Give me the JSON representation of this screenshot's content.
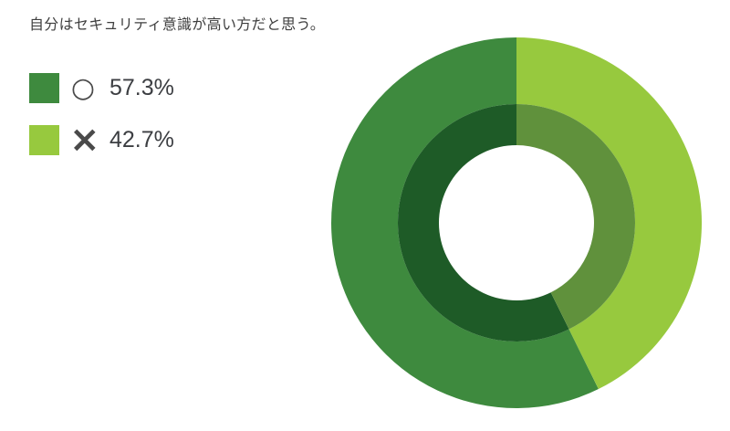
{
  "title": {
    "text": "自分はセキュリティ意識が高い方だと思う。"
  },
  "legend": {
    "items": [
      {
        "mark": "○",
        "value_label": "57.3%",
        "swatch_color": "#3e8a3e"
      },
      {
        "mark": "×",
        "value_label": "42.7%",
        "swatch_color": "#97c93e"
      }
    ]
  },
  "chart_data": {
    "type": "pie",
    "subtype": "donut",
    "title": "自分はセキュリティ意識が高い方だと思う。",
    "categories": [
      "○",
      "×"
    ],
    "values": [
      57.3,
      42.7
    ],
    "unit": "%",
    "legend_position": "left",
    "start_angle_deg": 0,
    "direction_note": "first series (○) occupies left half starting at 12 o'clock going counterclockwise",
    "series": [
      {
        "label": "○",
        "value": 57.3,
        "display": "57.3%",
        "color": "#3e8a3e",
        "inner_shade_color": "#1e5b27"
      },
      {
        "label": "×",
        "value": 42.7,
        "display": "42.7%",
        "color": "#97c93e",
        "inner_shade_color": "#60913c"
      }
    ],
    "colors": {
      "background": "#ffffff",
      "title_text": "#3f3f3f",
      "value_text": "#3c3e42",
      "mark_text": "#4a4a4a"
    }
  }
}
